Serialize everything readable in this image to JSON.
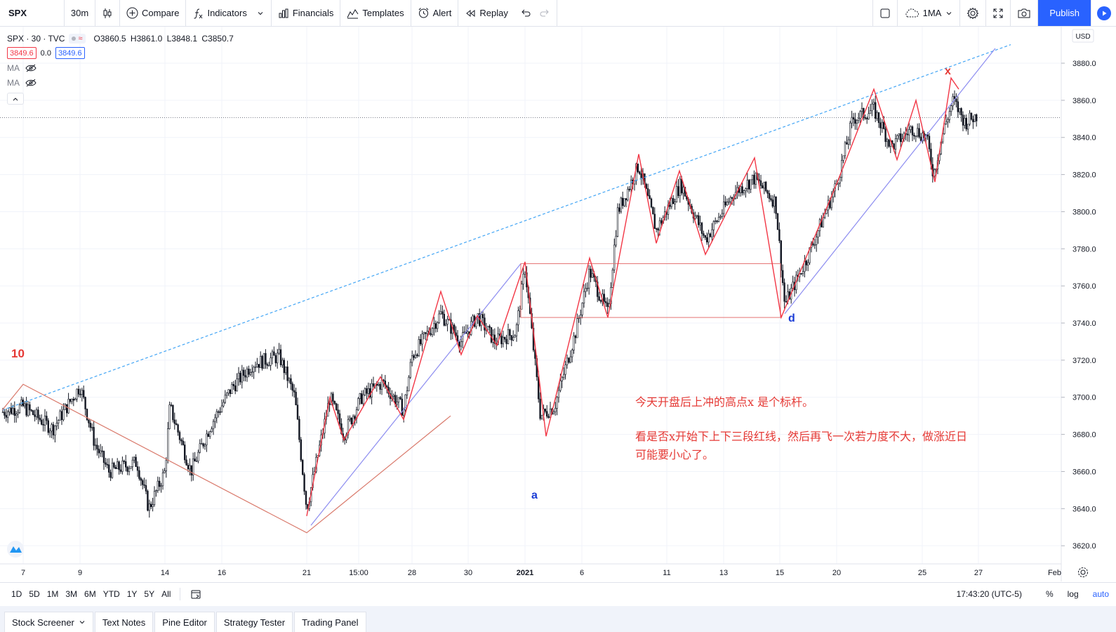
{
  "toolbar": {
    "symbol": "SPX",
    "interval": "30m",
    "compare": "Compare",
    "indicators": "Indicators",
    "financials": "Financials",
    "templates": "Templates",
    "alert": "Alert",
    "replay": "Replay",
    "ma_select": "1MA",
    "publish": "Publish"
  },
  "legend": {
    "symbol_line": "SPX · 30 · TVC",
    "open": "O3860.5",
    "high": "H3861.0",
    "low": "L3848.1",
    "close": "C3850.7",
    "bid": "3849.6",
    "spread": "0.0",
    "ask": "3849.6",
    "ma1": "MA",
    "ma2": "MA"
  },
  "price_axis": {
    "currency": "USD",
    "ticks": [
      "3880.0",
      "3860.0",
      "3840.0",
      "3820.0",
      "3800.0",
      "3780.0",
      "3760.0",
      "3740.0",
      "3720.0",
      "3700.0",
      "3680.0",
      "3660.0",
      "3640.0",
      "3620.0"
    ]
  },
  "time_axis": {
    "ticks": [
      "7",
      "9",
      "14",
      "16",
      "21",
      "15:00",
      "28",
      "30",
      "2021",
      "6",
      "11",
      "13",
      "15",
      "20",
      "25",
      "27",
      "Feb"
    ]
  },
  "annotations": {
    "wave_count": "10",
    "point_a": "a",
    "point_d": "d",
    "point_x": "x",
    "note_line1": "今天开盘后上冲的高点x  是个标杆。",
    "note_line2": "看是否x开始下上下三段红线，然后再飞一次若力度不大，做涨近日",
    "note_line3": "可能要小心了。"
  },
  "ranges": [
    "1D",
    "5D",
    "1M",
    "3M",
    "6M",
    "YTD",
    "1Y",
    "5Y",
    "All"
  ],
  "clock": "17:43:20 (UTC-5)",
  "axis_tools": {
    "percent": "%",
    "log": "log",
    "auto": "auto"
  },
  "panels": [
    "Stock Screener",
    "Text Notes",
    "Pine Editor",
    "Strategy Tester",
    "Trading Panel"
  ],
  "colors": {
    "accent": "#2962ff",
    "zigzag": "#f23645",
    "trendline_dashed": "#42a5f5",
    "channel": "#8c8cf0",
    "box": "#e57373",
    "candles": "#131722"
  }
}
